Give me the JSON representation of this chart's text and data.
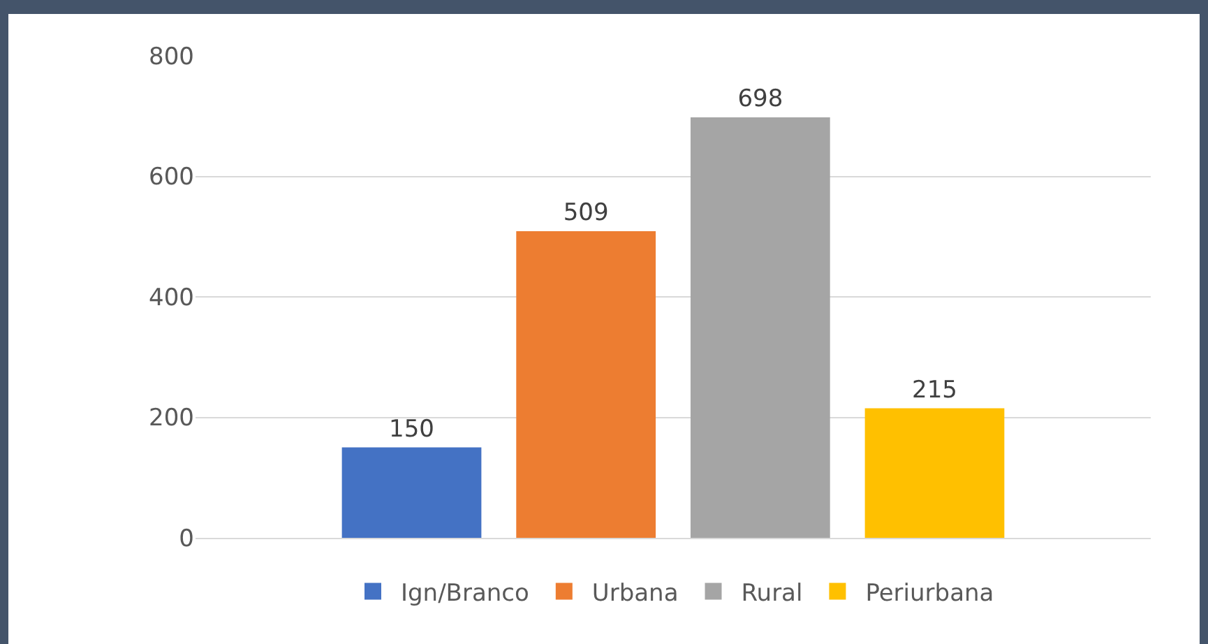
{
  "chart_data": {
    "type": "bar",
    "categories": [
      null
    ],
    "series": [
      {
        "name": "Ign/Branco",
        "color": "#4472c4",
        "values": [
          150
        ]
      },
      {
        "name": "Urbana",
        "color": "#ed7d31",
        "values": [
          509
        ]
      },
      {
        "name": "Rural",
        "color": "#a5a5a5",
        "values": [
          698
        ]
      },
      {
        "name": "Periurbana",
        "color": "#ffc000",
        "values": [
          215
        ]
      }
    ],
    "ylim": [
      0,
      800
    ],
    "yticks": [
      0,
      200,
      400,
      600,
      800
    ],
    "grid": "y",
    "legend": "bottom",
    "data_labels": true,
    "tick_labels": "y"
  }
}
